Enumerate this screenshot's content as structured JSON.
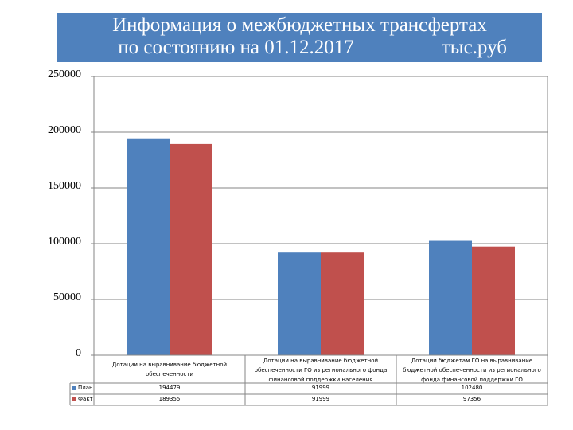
{
  "header": {
    "title_line1": "Информация о межбюджетных трансфертах",
    "title_line2": "по состоянию на 01.12.2017",
    "unit": "тыс.руб"
  },
  "colors": {
    "plan": "#4f81bd",
    "fact": "#c0504d",
    "header_bg": "#4f81bd"
  },
  "chart_data": {
    "type": "bar",
    "title": "Информация о межбюджетных трансфертах по состоянию на 01.12.2017 тыс.руб",
    "categories": [
      "Дотации на выравнивание бюджетной обеспеченности",
      "Дотации на выравнивание бюджетной обеспеченности ГО из регионального фонда финансовой поддержки населения",
      "Дотации бюджетам ГО на выравнивание бюджетной обеспеченности из регионального фонда финансовой поддержки ГО"
    ],
    "series": [
      {
        "name": "План",
        "values": [
          194479,
          91999,
          102480
        ]
      },
      {
        "name": "Факт",
        "values": [
          189355,
          91999,
          97356
        ]
      }
    ],
    "ylim": [
      0,
      250000
    ],
    "yticks": [
      "0",
      "50000",
      "100000",
      "150000",
      "200000",
      "250000"
    ],
    "grid": true,
    "legend_placement": "data-table"
  }
}
